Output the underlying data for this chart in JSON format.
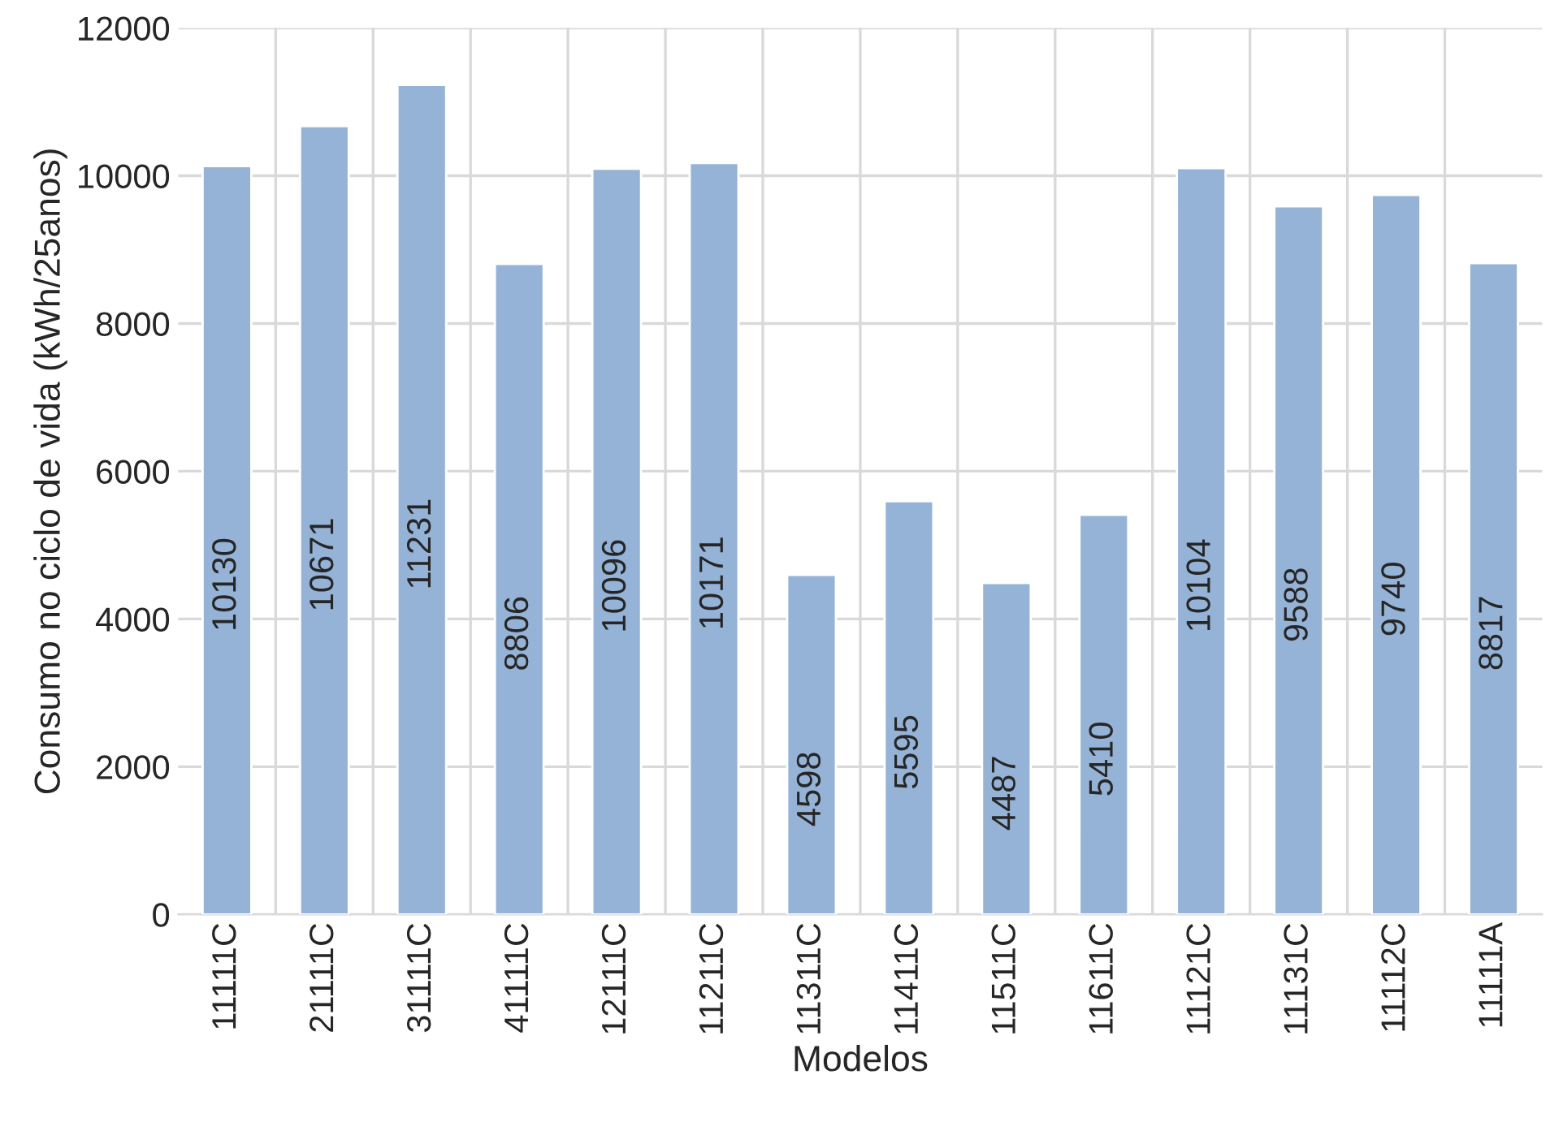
{
  "chart_data": {
    "type": "bar",
    "xlabel": "Modelos",
    "ylabel": "Consumo no ciclo de vida (kWh/25anos)",
    "categories": [
      "11111C",
      "21111C",
      "31111C",
      "41111C",
      "12111C",
      "11211C",
      "11311C",
      "11411C",
      "11511C",
      "11611C",
      "11121C",
      "11131C",
      "11112C",
      "11111A"
    ],
    "values": [
      10130,
      10671,
      11231,
      8806,
      10096,
      10171,
      4598,
      5595,
      4487,
      5410,
      10104,
      9588,
      9740,
      8817
    ],
    "color": "#95b3d7",
    "ylim": [
      0,
      12000
    ],
    "yticks": [
      0,
      2000,
      4000,
      6000,
      8000,
      10000,
      12000
    ],
    "grid": true,
    "data_labels": true
  }
}
